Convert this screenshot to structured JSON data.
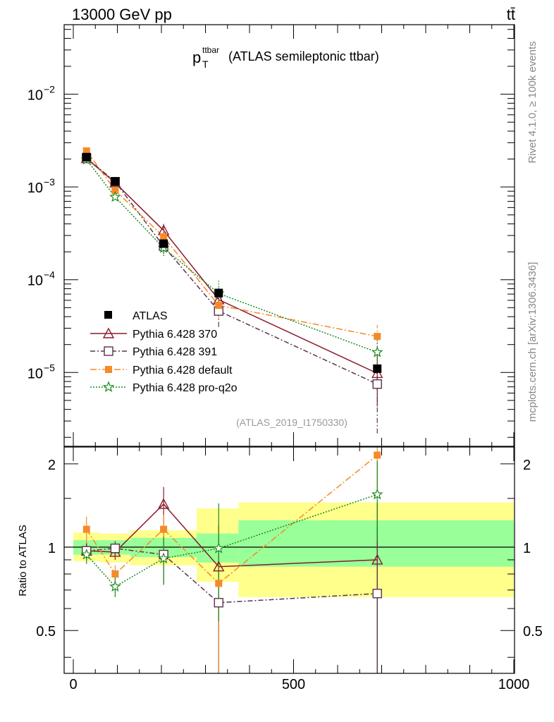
{
  "header": {
    "energy_label": "13000 GeV pp",
    "process_label": "tt̄"
  },
  "side_labels": {
    "rivet": "Rivet 4.1.0, ≥ 100k events",
    "mcplots": "mcplots.cern.ch [arXiv:1306.3436]"
  },
  "chart_data": [
    {
      "type": "line",
      "title_main": "p",
      "title_sub": "T",
      "title_sup": "ttbar",
      "title_rest": "(ATLAS semileptonic ttbar)",
      "analysis_id": "(ATLAS_2019_I1750330)",
      "xlim": [
        0,
        1000
      ],
      "ylim": [
        1.6e-06,
        0.0562
      ],
      "yscale": "log",
      "y_tick_labels": [
        {
          "value": 0.01,
          "base": "10",
          "exp": "−2"
        },
        {
          "value": 0.001,
          "base": "10",
          "exp": "−3"
        },
        {
          "value": 0.0001,
          "base": "10",
          "exp": "−4"
        },
        {
          "value": 1e-05,
          "base": "10",
          "exp": "−5"
        }
      ],
      "legend_position": "bottom-left",
      "bins": [
        [
          0,
          60
        ],
        [
          60,
          130
        ],
        [
          130,
          280
        ],
        [
          280,
          375
        ],
        [
          375,
          1000
        ]
      ],
      "data": {
        "name": "ATLAS",
        "x": [
          30,
          95,
          205,
          330,
          690
        ],
        "y": [
          0.0021,
          0.00115,
          0.000245,
          7.2e-05,
          1.1e-05
        ]
      },
      "series": [
        {
          "name": "Pythia 6.428 370",
          "color": "#8b1a2a",
          "marker": "open-triangle",
          "dash": "",
          "x": [
            30,
            95,
            205,
            330,
            690
          ],
          "y": [
            0.00203,
            0.00111,
            0.00034,
            6.1e-05,
            9.8e-06
          ],
          "err": [
            7e-05,
            6e-05,
            6e-05,
            1.6e-05,
            5.5e-06
          ]
        },
        {
          "name": "Pythia 6.428 391",
          "color": "#5c3348",
          "marker": "open-square",
          "dash": "7,3,2,3",
          "x": [
            30,
            95,
            205,
            330,
            690
          ],
          "y": [
            0.00205,
            0.00114,
            0.00023,
            4.6e-05,
            7.5e-06
          ],
          "err": [
            7e-05,
            6e-05,
            4e-05,
            1.5e-05,
            5.3e-06
          ]
        },
        {
          "name": "Pythia 6.428 default",
          "color": "#f58a2a",
          "marker": "filled-square",
          "dash": "9,3,2,3",
          "x": [
            30,
            95,
            205,
            330,
            690
          ],
          "y": [
            0.00245,
            0.00092,
            0.00029,
            5.3e-05,
            2.45e-05
          ],
          "err": [
            7e-05,
            6e-05,
            5e-05,
            1.4e-05,
            8e-06
          ]
        },
        {
          "name": "Pythia 6.428 pro-q2o",
          "color": "#1d8a1d",
          "marker": "star",
          "dash": "2,2",
          "x": [
            30,
            95,
            205,
            330,
            690
          ],
          "y": [
            0.00197,
            0.00078,
            0.00022,
            7.1e-05,
            1.65e-05
          ],
          "err": [
            7e-05,
            5e-05,
            4e-05,
            2.7e-05,
            6.5e-06
          ]
        }
      ]
    },
    {
      "type": "line",
      "ylabel": "Ratio to ATLAS",
      "xlim": [
        0,
        1000
      ],
      "ylim": [
        0.35,
        2.3
      ],
      "x_tick_labels": [
        "0",
        "500",
        "1000"
      ],
      "y_tick_labels": [
        "0.5",
        "1",
        "2"
      ],
      "bands": {
        "bins": [
          [
            0,
            60
          ],
          [
            60,
            130
          ],
          [
            130,
            280
          ],
          [
            280,
            375
          ],
          [
            375,
            1000
          ]
        ],
        "green": [
          [
            0.94,
            1.06
          ],
          [
            0.94,
            1.06
          ],
          [
            0.92,
            1.08
          ],
          [
            0.88,
            1.12
          ],
          [
            0.85,
            1.25
          ]
        ],
        "yellow": [
          [
            0.89,
            1.13
          ],
          [
            0.88,
            1.12
          ],
          [
            0.86,
            1.15
          ],
          [
            0.75,
            1.38
          ],
          [
            0.66,
            1.45
          ]
        ]
      },
      "series": [
        {
          "name": "Pythia 6.428 370",
          "x": [
            30,
            95,
            205,
            330,
            690
          ],
          "y": [
            0.97,
            0.96,
            1.43,
            0.85,
            0.9
          ],
          "err": [
            0.07,
            0.06,
            0.22,
            0.35,
            0.55
          ]
        },
        {
          "name": "Pythia 6.428 391",
          "x": [
            30,
            95,
            205,
            330,
            690
          ],
          "y": [
            0.97,
            0.99,
            0.94,
            0.63,
            0.68
          ],
          "err": [
            0.06,
            0.06,
            0.2,
            0.3,
            0.5
          ]
        },
        {
          "name": "Pythia 6.428 default",
          "x": [
            30,
            95,
            205,
            330,
            690
          ],
          "y": [
            1.16,
            0.8,
            1.16,
            0.74,
            2.15
          ],
          "err": [
            0.13,
            0.06,
            0.15,
            0.4,
            0.6
          ]
        },
        {
          "name": "Pythia 6.428 pro-q2o",
          "x": [
            30,
            95,
            205,
            330,
            690
          ],
          "y": [
            0.94,
            0.72,
            0.91,
            0.99,
            1.55
          ],
          "err": [
            0.07,
            0.06,
            0.18,
            0.45,
            0.5
          ]
        }
      ]
    }
  ]
}
